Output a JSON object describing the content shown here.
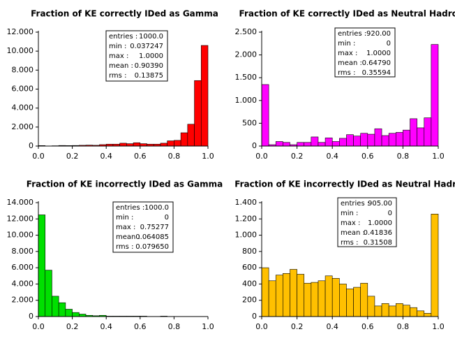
{
  "chart_data": [
    {
      "type": "histogram",
      "title": "Fraction of KE correctly IDed as Gamma",
      "color": "#ff0000",
      "bins": [
        0,
        0.04,
        0.08,
        0.12,
        0.16,
        0.2,
        0.24,
        0.28,
        0.32,
        0.36,
        0.4,
        0.44,
        0.48,
        0.52,
        0.56,
        0.6,
        0.64,
        0.68,
        0.72,
        0.76,
        0.8,
        0.84,
        0.88,
        0.92,
        0.96,
        1
      ],
      "values": [
        50,
        0,
        30,
        60,
        50,
        60,
        80,
        100,
        80,
        150,
        200,
        200,
        300,
        250,
        350,
        250,
        200,
        200,
        300,
        550,
        600,
        1400,
        2300,
        6900,
        10600
      ],
      "xlim": [
        0,
        1
      ],
      "ylim": [
        0,
        12000
      ],
      "xticks": [
        {
          "value": 0,
          "label": "0.0"
        },
        0.2,
        0.4,
        0.6,
        0.8,
        {
          "value": 1,
          "label": "1.0"
        }
      ],
      "yticks": [
        0,
        {
          "value": 2000,
          "label": "2.000"
        },
        {
          "value": 4000,
          "label": "4.000"
        },
        {
          "value": 6000,
          "label": "6.000"
        },
        {
          "value": 8000,
          "label": "8.000"
        },
        {
          "value": 10000,
          "label": "10.000"
        },
        {
          "value": 12000,
          "label": "12.000"
        }
      ],
      "stats": [
        {
          "label": "entries :",
          "value": "1000.0"
        },
        {
          "label": "min :",
          "value": "0.037247"
        },
        {
          "label": "max :",
          "value": "1.0000"
        },
        {
          "label": "mean :",
          "value": "0.90390"
        },
        {
          "label": "rms :",
          "value": "0.13875"
        }
      ]
    },
    {
      "type": "histogram",
      "title": "Fraction of KE correctly IDed as Neutral Hadron",
      "color": "#ff00ff",
      "bins": [
        0,
        0.04,
        0.08,
        0.12,
        0.16,
        0.2,
        0.24,
        0.28,
        0.32,
        0.36,
        0.4,
        0.44,
        0.48,
        0.52,
        0.56,
        0.6,
        0.64,
        0.68,
        0.72,
        0.76,
        0.8,
        0.84,
        0.88,
        0.92,
        0.96,
        1
      ],
      "values": [
        1350,
        30,
        100,
        80,
        30,
        80,
        80,
        200,
        80,
        180,
        100,
        170,
        250,
        220,
        280,
        260,
        380,
        230,
        280,
        300,
        350,
        600,
        400,
        620,
        2230
      ],
      "xlim": [
        0,
        1
      ],
      "ylim": [
        0,
        2500
      ],
      "xticks": [
        {
          "value": 0,
          "label": "0.0"
        },
        0.2,
        0.4,
        0.6,
        0.8,
        {
          "value": 1,
          "label": "1.0"
        }
      ],
      "yticks": [
        0,
        500,
        {
          "value": 1000,
          "label": "1.000"
        },
        {
          "value": 1500,
          "label": "1.500"
        },
        {
          "value": 2000,
          "label": "2.000"
        },
        {
          "value": 2500,
          "label": "2.500"
        }
      ],
      "stats": [
        {
          "label": "entries :",
          "value": "920.00"
        },
        {
          "label": "min :",
          "value": "0"
        },
        {
          "label": "max :",
          "value": "1.0000"
        },
        {
          "label": "mean :",
          "value": "0.64790"
        },
        {
          "label": "rms :",
          "value": "0.35594"
        }
      ]
    },
    {
      "type": "histogram",
      "title": "Fraction of KE incorrectly IDed as Gamma",
      "color": "#00e000",
      "bins": [
        0,
        0.04,
        0.08,
        0.12,
        0.16,
        0.2,
        0.24,
        0.28,
        0.32,
        0.36,
        0.4,
        0.44,
        0.48,
        0.52,
        0.56,
        0.6,
        0.64,
        0.68,
        0.72,
        0.76,
        0.8,
        0.84,
        0.88,
        0.92,
        0.96,
        1
      ],
      "values": [
        12500,
        5700,
        2500,
        1700,
        900,
        500,
        300,
        150,
        100,
        150,
        50,
        50,
        50,
        50,
        50,
        50,
        0,
        0,
        50,
        0,
        0,
        0,
        0,
        0,
        0
      ],
      "xlim": [
        0,
        1
      ],
      "ylim": [
        0,
        14000
      ],
      "xticks": [
        {
          "value": 0,
          "label": "0.0"
        },
        0.2,
        0.4,
        0.6,
        0.8,
        {
          "value": 1,
          "label": "1.0"
        }
      ],
      "yticks": [
        0,
        {
          "value": 2000,
          "label": "2.000"
        },
        {
          "value": 4000,
          "label": "4.000"
        },
        {
          "value": 6000,
          "label": "6.000"
        },
        {
          "value": 8000,
          "label": "8.000"
        },
        {
          "value": 10000,
          "label": "10.000"
        },
        {
          "value": 12000,
          "label": "12.000"
        },
        {
          "value": 14000,
          "label": "14.000"
        }
      ],
      "stats": [
        {
          "label": "entries :",
          "value": "1000.0"
        },
        {
          "label": "min :",
          "value": "0"
        },
        {
          "label": "max :",
          "value": "0.75277"
        },
        {
          "label": "mean :",
          "value": "0.064085"
        },
        {
          "label": "rms :",
          "value": "0.079650"
        }
      ]
    },
    {
      "type": "histogram",
      "title": "Fraction of KE incorrectly IDed as Neutral Hadron",
      "color": "#ffc000",
      "bins": [
        0,
        0.04,
        0.08,
        0.12,
        0.16,
        0.2,
        0.24,
        0.28,
        0.32,
        0.36,
        0.4,
        0.44,
        0.48,
        0.52,
        0.56,
        0.6,
        0.64,
        0.68,
        0.72,
        0.76,
        0.8,
        0.84,
        0.88,
        0.92,
        0.96,
        1
      ],
      "values": [
        600,
        440,
        510,
        530,
        580,
        520,
        410,
        420,
        440,
        500,
        470,
        400,
        340,
        360,
        410,
        250,
        130,
        160,
        130,
        160,
        140,
        110,
        70,
        40,
        1260
      ],
      "xlim": [
        0,
        1
      ],
      "ylim": [
        0,
        1400
      ],
      "xticks": [
        {
          "value": 0,
          "label": "0.0"
        },
        0.2,
        0.4,
        0.6,
        0.8,
        {
          "value": 1,
          "label": "1.0"
        }
      ],
      "yticks": [
        0,
        200,
        400,
        600,
        800,
        {
          "value": 1000,
          "label": "1.000"
        },
        {
          "value": 1200,
          "label": "1.200"
        },
        {
          "value": 1400,
          "label": "1.400"
        }
      ],
      "stats": [
        {
          "label": "entries :",
          "value": "905.00"
        },
        {
          "label": "min :",
          "value": "0"
        },
        {
          "label": "max :",
          "value": "1.0000"
        },
        {
          "label": "mean :",
          "value": "0.41836"
        },
        {
          "label": "rms :",
          "value": "0.31508"
        }
      ]
    }
  ]
}
